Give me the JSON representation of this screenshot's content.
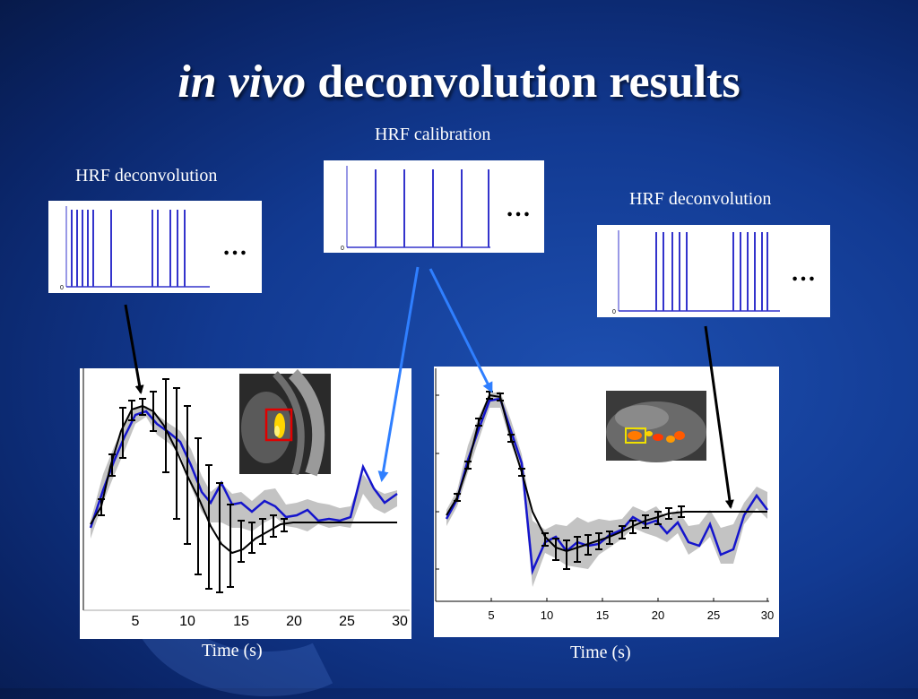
{
  "title": {
    "italic": "in vivo",
    "rest": "deconvolution results"
  },
  "labels": {
    "left_deconv": "HRF deconvolution",
    "center_calib": "HRF calibration",
    "right_deconv": "HRF deconvolution",
    "ellipsis": "…",
    "zero": "0"
  },
  "plots": {
    "left": {
      "xticks": [
        "5",
        "10",
        "15",
        "20",
        "25",
        "30"
      ],
      "xlabel": "Time (s)"
    },
    "right": {
      "xticks": [
        "5",
        "10",
        "15",
        "20",
        "25",
        "30"
      ],
      "xlabel": "Time (s)"
    }
  },
  "colors": {
    "spike": "#3333cc",
    "estimate": "#1010cc",
    "truth": "#000000",
    "band": "#bdbdbd",
    "left_arrow": "#000000",
    "blue_arrow": "#2f7fff",
    "box_left": "#e00000",
    "box_right": "#f0e000"
  }
}
